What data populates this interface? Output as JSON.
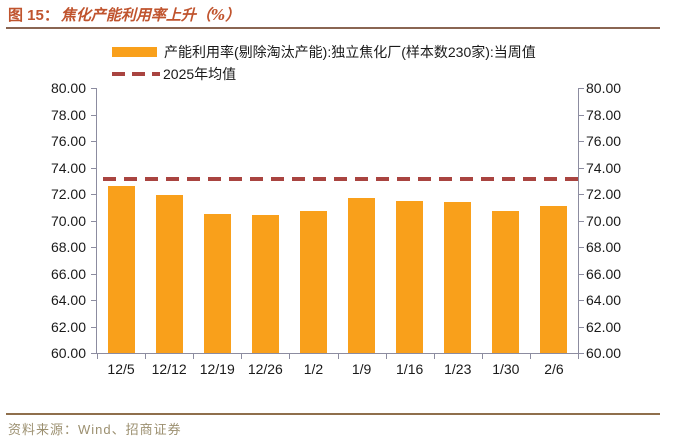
{
  "title": {
    "label": "图 15：",
    "text": "焦化产能利用率上升（%）"
  },
  "legend": {
    "bar_label": "产能利用率(剔除淘汰产能):独立焦化厂(样本数230家):当周值",
    "mean_label": "2025年均值"
  },
  "chart_data": {
    "type": "bar",
    "title": "焦化产能利用率上升（%）",
    "categories": [
      "12/5",
      "12/12",
      "12/19",
      "12/26",
      "1/2",
      "1/9",
      "1/16",
      "1/23",
      "1/30",
      "2/6"
    ],
    "series": [
      {
        "name": "产能利用率(剔除淘汰产能):独立焦化厂(样本数230家):当周值",
        "type": "bar",
        "values": [
          72.6,
          71.9,
          70.5,
          70.4,
          70.7,
          71.7,
          71.5,
          71.4,
          70.7,
          71.1
        ]
      },
      {
        "name": "2025年均值",
        "type": "dashed-line",
        "value": 73.1
      }
    ],
    "xlabel": "",
    "ylabel": "",
    "ylim": [
      60,
      80
    ],
    "y_tick_step": 2,
    "y_tick_labels": [
      "80.00",
      "78.00",
      "76.00",
      "74.00",
      "72.00",
      "70.00",
      "68.00",
      "66.00",
      "64.00",
      "62.00",
      "60.00"
    ],
    "grid": false,
    "dual_y_axis": true,
    "legend_position": "top-left"
  },
  "footer": {
    "source": "资料来源：Wind、招商证券"
  },
  "colors": {
    "bar": "#F9A01B",
    "mean_line": "#A94440",
    "title": "#C0542E",
    "title_rule": "#8A6552",
    "footer_rule": "#8F6F4C",
    "footer_text": "#9C9070",
    "axis": "#8C8CA0",
    "text": "#1A1A1A"
  }
}
